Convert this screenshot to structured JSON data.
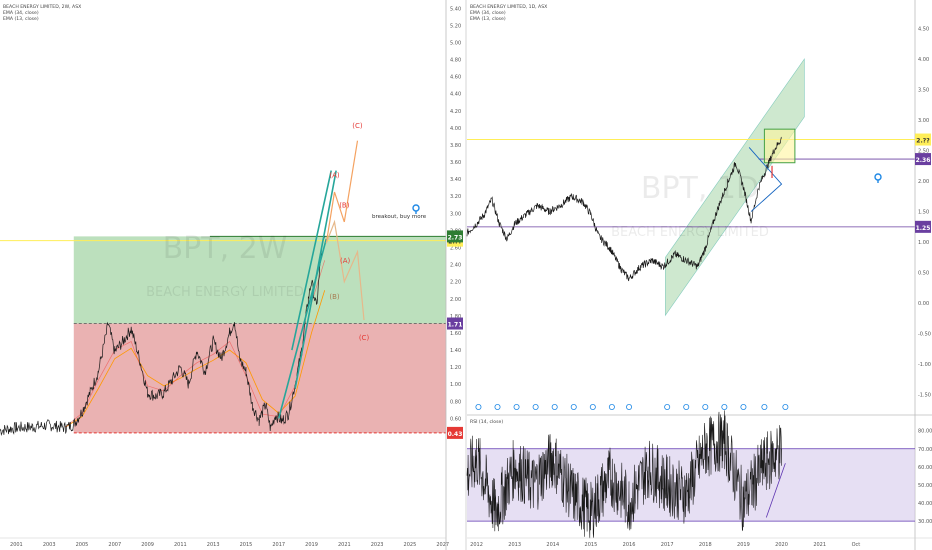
{
  "colors": {
    "price": "#1a1a1a",
    "ema34": "#ff9800",
    "ema13": "#ef5350",
    "green_zone": "#a5d6a7",
    "red_zone": "#e6a4a4",
    "channel": "#26a69a",
    "wave_orange": "#f4a261",
    "wave_red": "#e53935",
    "purple": "#6a3fa0",
    "yellow": "#ffee58",
    "marker": "#1e88e5",
    "rsi_band": "#d1c4e9",
    "rsi_line": "#5e35b1"
  },
  "left_chart": {
    "header": [
      "BEACH ENERGY LIMITED, 2W, ASX",
      "EMA (34, close)",
      "EMA (13, close)"
    ],
    "watermark": {
      "symbol": "BPT, 2W",
      "name": "BEACH ENERGY LIMITED"
    },
    "price_tag_yellow": "2.??",
    "price_tag_top": "2.73",
    "price_tag_mid": "1.71",
    "price_tag_low": "0.43",
    "annotation": "breakout, buy more",
    "waves_orange": [
      "(A)",
      "(B)",
      "(C)"
    ],
    "waves_red": [
      "(A)",
      "(B)",
      "(C)"
    ]
  },
  "right_chart": {
    "header": [
      "BEACH ENERGY LIMITED, 1D, ASX",
      "EMA (34, close)",
      "EMA (13, close)"
    ],
    "watermark": {
      "symbol": "BPT, 1D",
      "name": "BEACH ENERGY LIMITED"
    },
    "price_tag_yellow": "2.??",
    "price_tag_top": "2.36",
    "price_tag_low": "1.25",
    "rsi_header": "RSI (14, close)"
  },
  "chart_data": [
    {
      "type": "line",
      "panel": "left",
      "title": "BEACH ENERGY LIMITED, 2W, ASX",
      "series": [
        {
          "name": "EMA (34, close)"
        },
        {
          "name": "EMA (13, close)"
        }
      ],
      "x_ticks": [
        "2001",
        "2003",
        "2005",
        "2007",
        "2009",
        "2011",
        "2013",
        "2015",
        "2017",
        "2019",
        "2021",
        "2023",
        "2025",
        "2027"
      ],
      "y_ticks": [
        "0.40",
        "0.60",
        "0.80",
        "1.00",
        "1.20",
        "1.40",
        "1.60",
        "1.80",
        "2.00",
        "2.20",
        "2.40",
        "2.60",
        "2.80",
        "3.00",
        "3.20",
        "3.40",
        "3.60",
        "3.80",
        "4.00",
        "4.20",
        "4.40",
        "4.60",
        "4.80",
        "5.00",
        "5.20",
        "5.40"
      ],
      "ylim": [
        0.3,
        5.45
      ],
      "xlim": [
        2000.0,
        2027.2
      ],
      "price_points": [
        [
          2000.0,
          0.46
        ],
        [
          2001.0,
          0.49
        ],
        [
          2002.0,
          0.5
        ],
        [
          2003.0,
          0.52
        ],
        [
          2004.0,
          0.49
        ],
        [
          2004.5,
          0.53
        ],
        [
          2005.0,
          0.68
        ],
        [
          2005.5,
          0.9
        ],
        [
          2006.0,
          1.15
        ],
        [
          2006.6,
          1.7
        ],
        [
          2007.0,
          1.38
        ],
        [
          2007.5,
          1.5
        ],
        [
          2008.0,
          1.65
        ],
        [
          2008.5,
          1.3
        ],
        [
          2009.0,
          0.9
        ],
        [
          2009.5,
          0.86
        ],
        [
          2010.0,
          0.9
        ],
        [
          2010.5,
          1.05
        ],
        [
          2011.0,
          1.2
        ],
        [
          2011.5,
          1.0
        ],
        [
          2012.0,
          1.4
        ],
        [
          2012.5,
          1.15
        ],
        [
          2013.0,
          1.5
        ],
        [
          2013.5,
          1.3
        ],
        [
          2014.0,
          1.6
        ],
        [
          2014.3,
          1.75
        ],
        [
          2014.6,
          1.3
        ],
        [
          2015.0,
          1.15
        ],
        [
          2015.4,
          0.75
        ],
        [
          2015.8,
          0.58
        ],
        [
          2016.2,
          0.76
        ],
        [
          2016.5,
          0.48
        ],
        [
          2016.8,
          0.64
        ],
        [
          2017.2,
          0.57
        ],
        [
          2017.6,
          0.66
        ],
        [
          2018.0,
          1.0
        ],
        [
          2018.4,
          1.4
        ],
        [
          2018.8,
          2.0
        ],
        [
          2019.0,
          2.2
        ],
        [
          2019.3,
          1.9
        ],
        [
          2019.6,
          2.55
        ],
        [
          2019.8,
          2.72
        ]
      ],
      "ema34_points": [
        [
          2004.0,
          0.5
        ],
        [
          2005.0,
          0.62
        ],
        [
          2006.0,
          0.95
        ],
        [
          2007.0,
          1.3
        ],
        [
          2008.0,
          1.42
        ],
        [
          2009.0,
          1.1
        ],
        [
          2010.0,
          0.98
        ],
        [
          2011.0,
          1.07
        ],
        [
          2012.0,
          1.18
        ],
        [
          2013.0,
          1.28
        ],
        [
          2014.0,
          1.4
        ],
        [
          2015.0,
          1.25
        ],
        [
          2016.0,
          0.82
        ],
        [
          2017.0,
          0.66
        ],
        [
          2018.0,
          0.86
        ],
        [
          2019.0,
          1.6
        ],
        [
          2019.8,
          2.1
        ]
      ],
      "ema13_points": [
        [
          2004.0,
          0.5
        ],
        [
          2005.0,
          0.66
        ],
        [
          2006.0,
          1.05
        ],
        [
          2007.0,
          1.4
        ],
        [
          2008.0,
          1.5
        ],
        [
          2009.0,
          0.98
        ],
        [
          2010.0,
          0.92
        ],
        [
          2011.0,
          1.1
        ],
        [
          2012.0,
          1.25
        ],
        [
          2013.0,
          1.35
        ],
        [
          2014.0,
          1.5
        ],
        [
          2015.0,
          1.1
        ],
        [
          2016.0,
          0.65
        ],
        [
          2017.0,
          0.62
        ],
        [
          2018.0,
          0.98
        ],
        [
          2019.0,
          1.95
        ],
        [
          2019.8,
          2.45
        ]
      ],
      "zones": {
        "green": [
          1.71,
          2.73
        ],
        "red": [
          0.43,
          1.71
        ]
      },
      "levels": {
        "top": 2.73,
        "mid": 1.71,
        "low": 0.43,
        "yellow": 2.68
      },
      "channel_lines": [
        [
          [
            2017.0,
            0.6
          ],
          [
            2019.9,
            2.7
          ]
        ],
        [
          [
            2018.0,
            0.95
          ],
          [
            2020.5,
            3.5
          ]
        ],
        [
          [
            2017.8,
            1.4
          ],
          [
            2020.2,
            3.5
          ]
        ]
      ],
      "wave_orange_path": [
        [
          2019.9,
          2.65
        ],
        [
          2020.4,
          3.25
        ],
        [
          2021.0,
          2.9
        ],
        [
          2021.8,
          3.85
        ]
      ],
      "wave_orange_labels": [
        [
          2020.4,
          3.42
        ],
        [
          2021.0,
          3.07
        ],
        [
          2021.8,
          4.0
        ]
      ],
      "wave_red_path": [
        [
          2019.9,
          2.65
        ],
        [
          2020.4,
          2.9
        ],
        [
          2021.0,
          2.2
        ],
        [
          2021.8,
          2.55
        ],
        [
          2022.2,
          1.75
        ]
      ],
      "wave_red_labels": [
        [
          2021.05,
          2.42
        ],
        [
          2020.4,
          2.0
        ],
        [
          2022.2,
          1.52
        ]
      ]
    },
    {
      "type": "line",
      "panel": "right",
      "title": "BEACH ENERGY LIMITED, 1D, ASX",
      "series": [
        {
          "name": "EMA (34, close)"
        },
        {
          "name": "EMA (13, close)"
        }
      ],
      "x_ticks": [
        "2012",
        "2013",
        "2014",
        "2015",
        "2016",
        "2017",
        "2018",
        "2019",
        "2020",
        "2021",
        "Oct"
      ],
      "y_ticks": [
        "-1.50",
        "-1.00",
        "-0.50",
        "0.00",
        "0.50",
        "1.00",
        "1.50",
        "2.00",
        "2.50",
        "3.00",
        "3.50",
        "4.00",
        "4.50"
      ],
      "ylim": [
        -1.75,
        4.9
      ],
      "xlim": [
        2011.75,
        2023.5
      ],
      "price_points": [
        [
          2011.75,
          1.15
        ],
        [
          2012.0,
          1.3
        ],
        [
          2012.2,
          1.45
        ],
        [
          2012.4,
          1.7
        ],
        [
          2012.6,
          1.3
        ],
        [
          2012.8,
          1.05
        ],
        [
          2013.0,
          1.3
        ],
        [
          2013.3,
          1.45
        ],
        [
          2013.6,
          1.6
        ],
        [
          2013.9,
          1.5
        ],
        [
          2014.2,
          1.6
        ],
        [
          2014.5,
          1.75
        ],
        [
          2014.8,
          1.65
        ],
        [
          2015.0,
          1.45
        ],
        [
          2015.2,
          1.1
        ],
        [
          2015.5,
          0.9
        ],
        [
          2015.8,
          0.55
        ],
        [
          2016.0,
          0.4
        ],
        [
          2016.3,
          0.6
        ],
        [
          2016.6,
          0.7
        ],
        [
          2016.9,
          0.6
        ],
        [
          2017.2,
          0.8
        ],
        [
          2017.5,
          0.7
        ],
        [
          2017.8,
          0.6
        ],
        [
          2018.0,
          0.9
        ],
        [
          2018.3,
          1.5
        ],
        [
          2018.6,
          2.0
        ],
        [
          2018.8,
          2.3
        ],
        [
          2019.0,
          1.9
        ],
        [
          2019.2,
          1.35
        ],
        [
          2019.4,
          1.9
        ],
        [
          2019.6,
          2.2
        ],
        [
          2019.8,
          2.5
        ],
        [
          2020.0,
          2.7
        ]
      ],
      "rsi_points": [
        [
          2011.75,
          55
        ],
        [
          2012.0,
          65
        ],
        [
          2012.5,
          35
        ],
        [
          2013.0,
          60
        ],
        [
          2013.5,
          50
        ],
        [
          2014.0,
          65
        ],
        [
          2014.5,
          45
        ],
        [
          2015.0,
          35
        ],
        [
          2015.5,
          55
        ],
        [
          2016.0,
          40
        ],
        [
          2016.5,
          60
        ],
        [
          2017.0,
          50
        ],
        [
          2017.5,
          45
        ],
        [
          2018.0,
          70
        ],
        [
          2018.5,
          75
        ],
        [
          2019.0,
          40
        ],
        [
          2019.5,
          60
        ],
        [
          2020.0,
          70
        ]
      ],
      "rsi_ticks": [
        "30.00",
        "40.00",
        "50.00",
        "60.00",
        "70.00",
        "80.00"
      ],
      "rsi_ylim": [
        24,
        87
      ],
      "levels": {
        "top": 2.36,
        "low": 1.25,
        "yellow": 2.68
      },
      "channel": [
        [
          2016.95,
          0.75
        ],
        [
          2020.6,
          4.0
        ],
        [
          2020.6,
          3.05
        ],
        [
          2016.95,
          -0.2
        ]
      ],
      "box": [
        [
          2019.55,
          2.3
        ],
        [
          2020.35,
          2.85
        ]
      ],
      "circle_markers_x": [
        2012.05,
        2012.55,
        2013.05,
        2013.55,
        2014.05,
        2014.55,
        2015.05,
        2015.55,
        2016.0,
        2017.0,
        2017.5,
        2018.0,
        2018.5,
        2019.0,
        2019.55,
        2020.1
      ]
    }
  ]
}
